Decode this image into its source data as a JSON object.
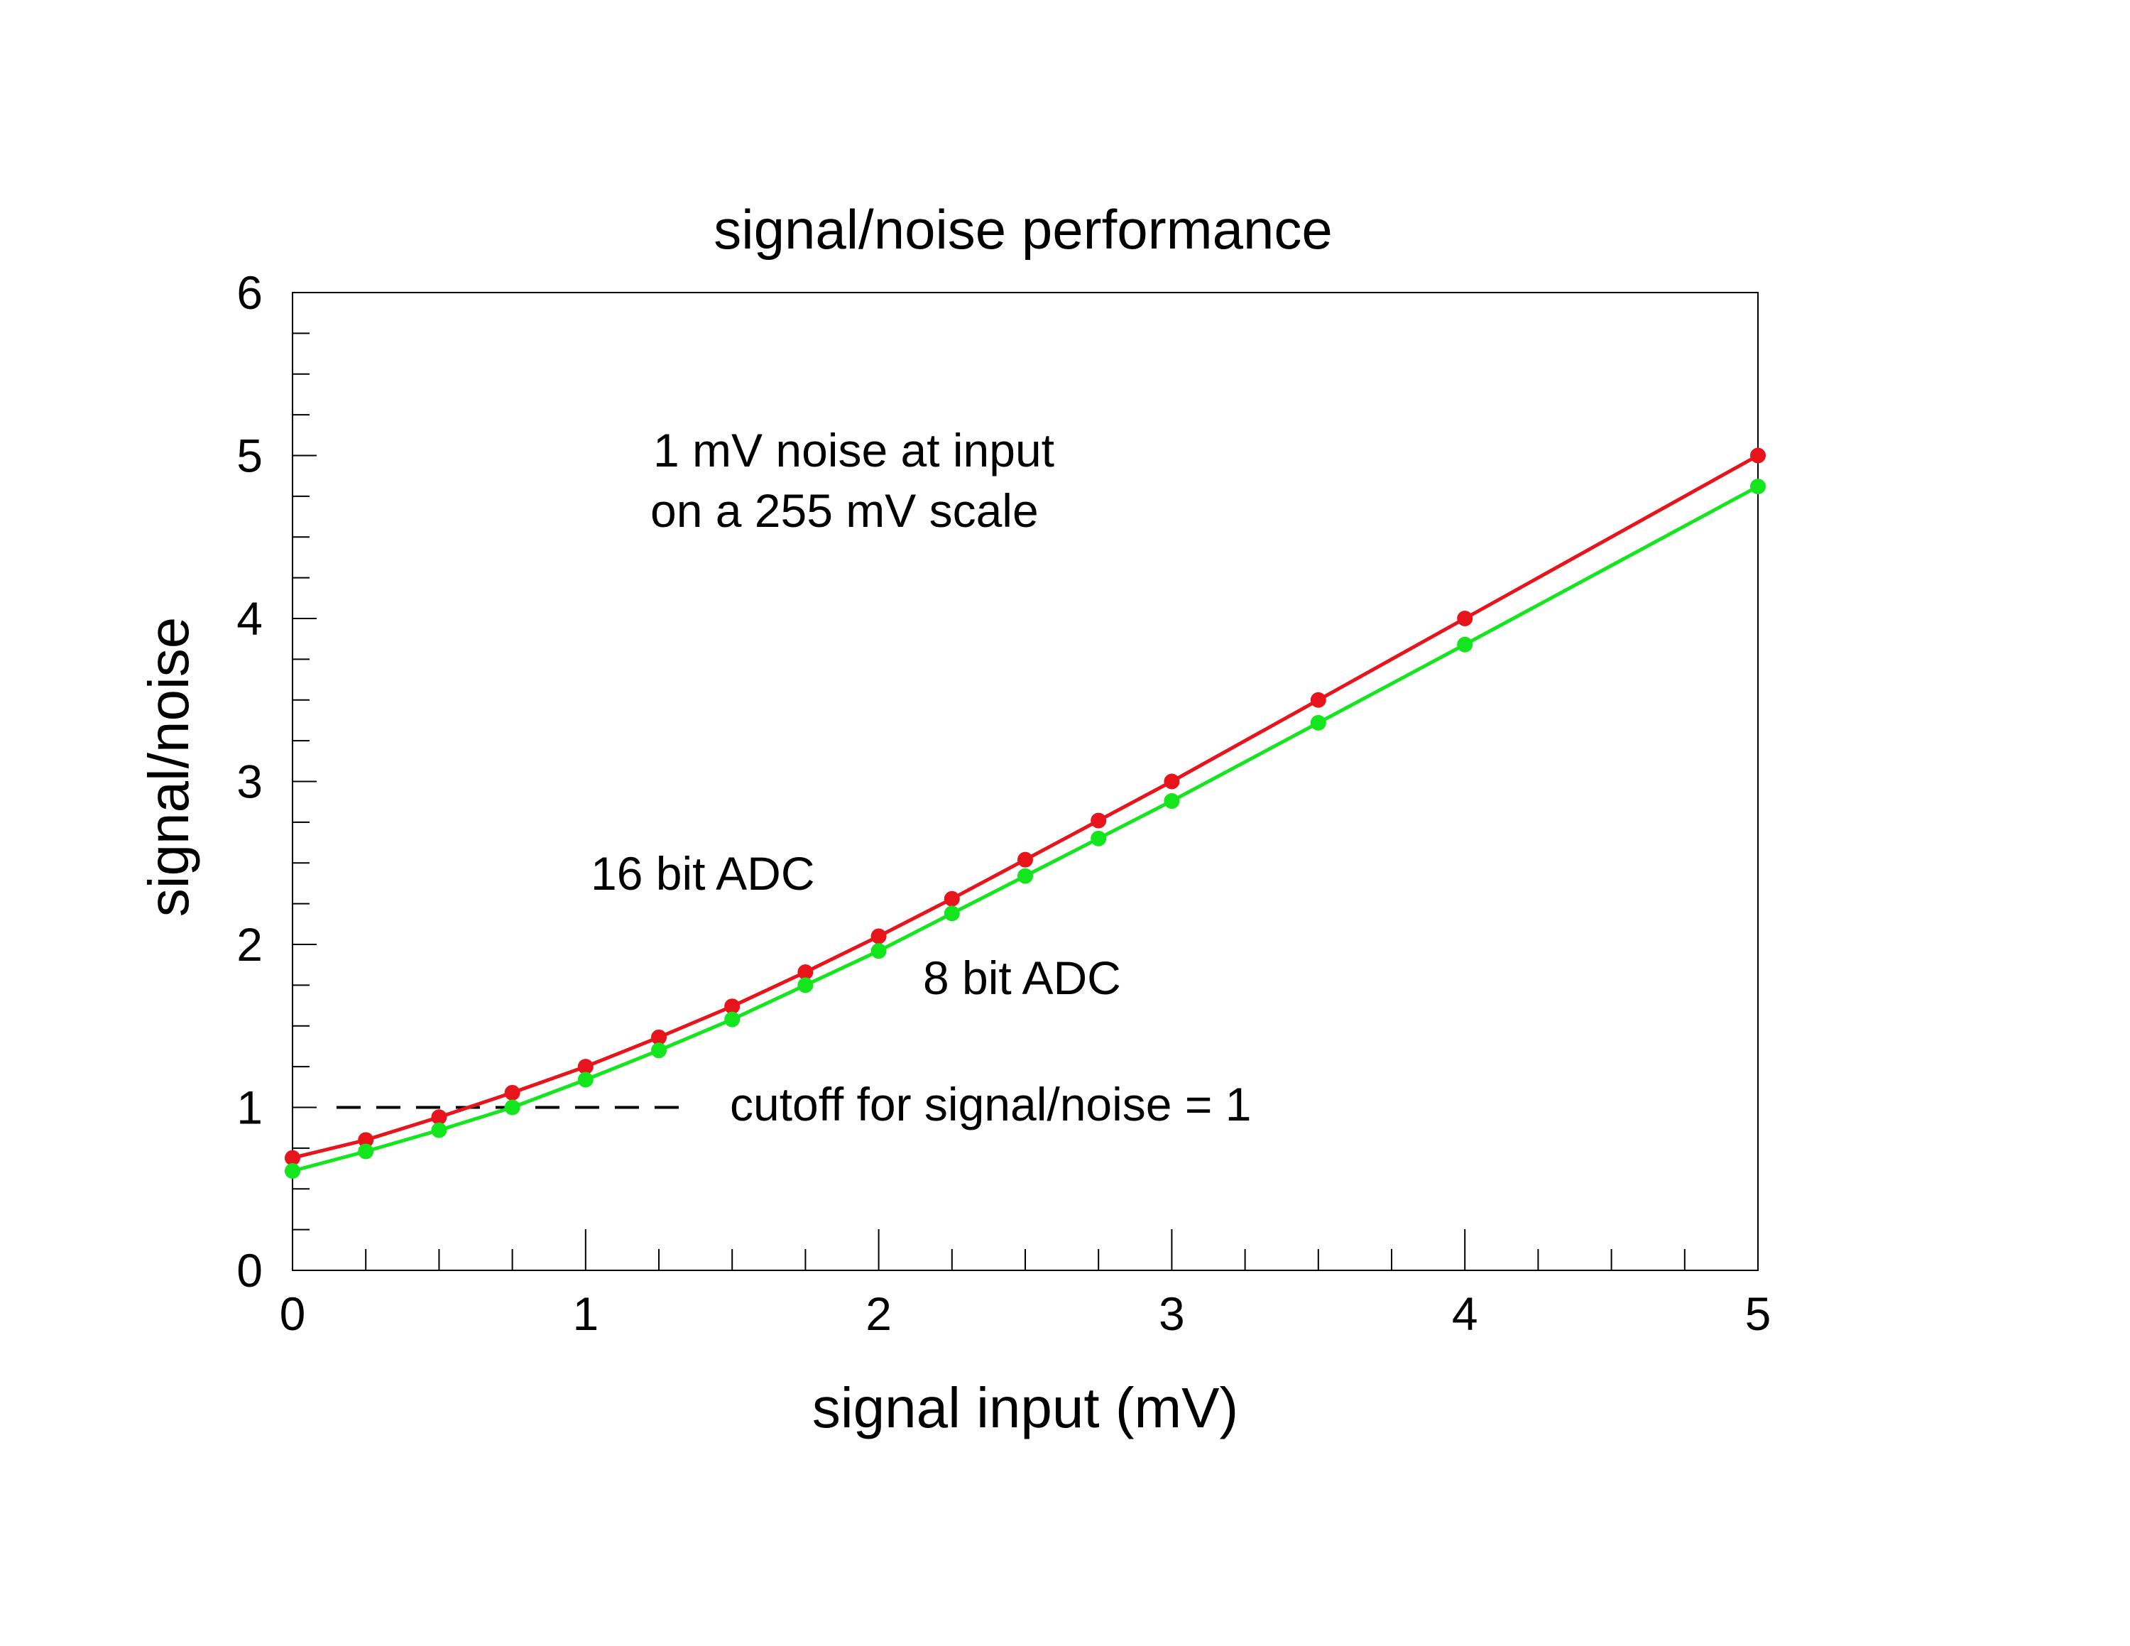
{
  "chart_data": {
    "type": "line",
    "title": "signal/noise performance",
    "xlabel": "signal input (mV)",
    "ylabel": "signal/noise",
    "xlim": [
      0,
      5
    ],
    "ylim": [
      0,
      6
    ],
    "x_ticks": [
      0,
      1,
      2,
      3,
      4,
      5
    ],
    "y_ticks": [
      0,
      1,
      2,
      3,
      4,
      5,
      6
    ],
    "x_minor_step": 0.25,
    "y_minor_step": 0.25,
    "grid": false,
    "series": [
      {
        "name": "16 bit ADC",
        "color": "#e8141c",
        "x": [
          0,
          0.25,
          0.5,
          0.75,
          1,
          1.25,
          1.5,
          1.75,
          2,
          2.25,
          2.5,
          2.75,
          3,
          3.5,
          4,
          5
        ],
        "y": [
          0.69,
          0.8,
          0.94,
          1.09,
          1.25,
          1.43,
          1.62,
          1.83,
          2.05,
          2.28,
          2.52,
          2.76,
          3.0,
          3.5,
          4.0,
          5.0
        ]
      },
      {
        "name": "8 bit ADC",
        "color": "#14e61e",
        "x": [
          0,
          0.25,
          0.5,
          0.75,
          1,
          1.25,
          1.5,
          1.75,
          2,
          2.25,
          2.5,
          2.75,
          3,
          3.5,
          4,
          5
        ],
        "y": [
          0.61,
          0.73,
          0.86,
          1.0,
          1.17,
          1.35,
          1.54,
          1.75,
          1.96,
          2.19,
          2.42,
          2.65,
          2.88,
          3.36,
          3.84,
          4.81
        ]
      }
    ],
    "reference_line": {
      "y": 1,
      "x_start": 0.15,
      "x_end": 1.35,
      "style": "dashed",
      "label": "cutoff for signal/noise = 1"
    },
    "annotations": [
      "1 mV noise at input",
      "on a 255 mV scale"
    ]
  }
}
